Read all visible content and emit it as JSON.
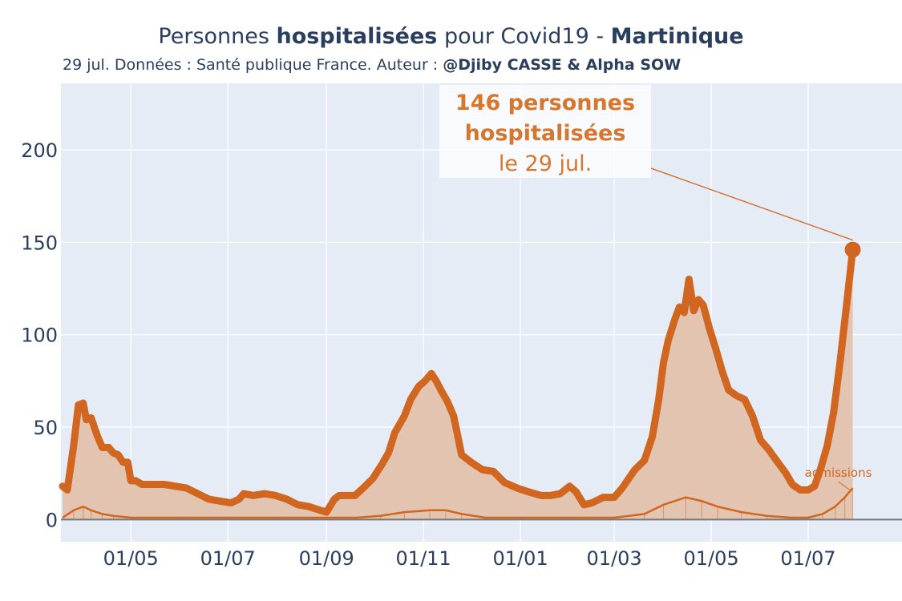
{
  "header": {
    "title_prefix": "Personnes ",
    "title_bold1": "hospitalisées",
    "title_middle": " pour Covid19 - ",
    "title_bold2": "Martinique",
    "subtitle_prefix": "29 jul. Données : Santé publique France. Auteur : ",
    "subtitle_bold": "@Djiby CASSE & Alpha SOW"
  },
  "annotation": {
    "line1": "146 personnes",
    "line2": "hospitalisées",
    "line3": "le 29 jul.",
    "color": "#d6762f"
  },
  "colors": {
    "plot_bg": "#e5ecf6",
    "grid": "#ffffff",
    "main_line": "#d0661f",
    "fill": "#e2c2ad",
    "admissions": "#d0661f",
    "axis_text": "#2a3f5f",
    "zero_line": "#777777"
  },
  "chart_data": {
    "type": "area",
    "xlim": [
      "2020-03-18",
      "2021-08-29"
    ],
    "ylim": [
      -12,
      236
    ],
    "y_ticks": [
      0,
      50,
      100,
      150,
      200
    ],
    "x_ticks": [
      {
        "date": "2020-05-01",
        "label": "01/05"
      },
      {
        "date": "2020-07-01",
        "label": "01/07"
      },
      {
        "date": "2020-09-01",
        "label": "01/09"
      },
      {
        "date": "2020-11-01",
        "label": "01/11"
      },
      {
        "date": "2021-01-01",
        "label": "01/01"
      },
      {
        "date": "2021-03-01",
        "label": "01/03"
      },
      {
        "date": "2021-05-01",
        "label": "01/05"
      },
      {
        "date": "2021-07-01",
        "label": "01/07"
      }
    ],
    "grid": true,
    "series": [
      {
        "name": "",
        "type": "area",
        "points": [
          [
            "2020-03-19",
            18
          ],
          [
            "2020-03-22",
            16
          ],
          [
            "2020-03-26",
            40
          ],
          [
            "2020-03-29",
            62
          ],
          [
            "2020-04-01",
            63
          ],
          [
            "2020-04-03",
            54
          ],
          [
            "2020-04-06",
            55
          ],
          [
            "2020-04-10",
            45
          ],
          [
            "2020-04-13",
            39
          ],
          [
            "2020-04-17",
            39
          ],
          [
            "2020-04-20",
            36
          ],
          [
            "2020-04-23",
            35
          ],
          [
            "2020-04-26",
            31
          ],
          [
            "2020-04-29",
            31
          ],
          [
            "2020-05-01",
            21
          ],
          [
            "2020-05-04",
            21
          ],
          [
            "2020-05-08",
            19
          ],
          [
            "2020-05-15",
            19
          ],
          [
            "2020-05-22",
            19
          ],
          [
            "2020-05-29",
            18
          ],
          [
            "2020-06-05",
            17
          ],
          [
            "2020-06-12",
            14
          ],
          [
            "2020-06-19",
            11
          ],
          [
            "2020-06-26",
            10
          ],
          [
            "2020-07-03",
            9
          ],
          [
            "2020-07-08",
            11
          ],
          [
            "2020-07-11",
            14
          ],
          [
            "2020-07-17",
            13
          ],
          [
            "2020-07-24",
            14
          ],
          [
            "2020-07-31",
            13
          ],
          [
            "2020-08-07",
            11
          ],
          [
            "2020-08-14",
            8
          ],
          [
            "2020-08-21",
            7
          ],
          [
            "2020-08-28",
            5
          ],
          [
            "2020-09-01",
            4
          ],
          [
            "2020-09-06",
            11
          ],
          [
            "2020-09-09",
            13
          ],
          [
            "2020-09-13",
            13
          ],
          [
            "2020-09-19",
            13
          ],
          [
            "2020-09-24",
            17
          ],
          [
            "2020-09-30",
            22
          ],
          [
            "2020-10-06",
            30
          ],
          [
            "2020-10-10",
            36
          ],
          [
            "2020-10-14",
            47
          ],
          [
            "2020-10-20",
            56
          ],
          [
            "2020-10-24",
            65
          ],
          [
            "2020-10-29",
            72
          ],
          [
            "2020-11-02",
            75
          ],
          [
            "2020-11-06",
            79
          ],
          [
            "2020-11-09",
            75
          ],
          [
            "2020-11-12",
            70
          ],
          [
            "2020-11-16",
            64
          ],
          [
            "2020-11-20",
            56
          ],
          [
            "2020-11-25",
            35
          ],
          [
            "2020-12-01",
            31
          ],
          [
            "2020-12-08",
            27
          ],
          [
            "2020-12-15",
            26
          ],
          [
            "2020-12-22",
            20
          ],
          [
            "2020-12-30",
            17
          ],
          [
            "2021-01-06",
            15
          ],
          [
            "2021-01-14",
            13
          ],
          [
            "2021-01-20",
            13
          ],
          [
            "2021-01-26",
            14
          ],
          [
            "2021-02-01",
            18
          ],
          [
            "2021-02-05",
            15
          ],
          [
            "2021-02-10",
            8
          ],
          [
            "2021-02-15",
            9
          ],
          [
            "2021-02-22",
            12
          ],
          [
            "2021-03-01",
            12
          ],
          [
            "2021-03-06",
            17
          ],
          [
            "2021-03-10",
            22
          ],
          [
            "2021-03-14",
            27
          ],
          [
            "2021-03-20",
            32
          ],
          [
            "2021-03-25",
            45
          ],
          [
            "2021-03-29",
            65
          ],
          [
            "2021-04-01",
            85
          ],
          [
            "2021-04-04",
            97
          ],
          [
            "2021-04-08",
            108
          ],
          [
            "2021-04-11",
            115
          ],
          [
            "2021-04-14",
            112
          ],
          [
            "2021-04-17",
            130
          ],
          [
            "2021-04-20",
            113
          ],
          [
            "2021-04-23",
            119
          ],
          [
            "2021-04-26",
            116
          ],
          [
            "2021-04-30",
            103
          ],
          [
            "2021-05-04",
            92
          ],
          [
            "2021-05-08",
            80
          ],
          [
            "2021-05-12",
            70
          ],
          [
            "2021-05-17",
            67
          ],
          [
            "2021-05-22",
            65
          ],
          [
            "2021-05-27",
            56
          ],
          [
            "2021-06-01",
            43
          ],
          [
            "2021-06-06",
            38
          ],
          [
            "2021-06-11",
            32
          ],
          [
            "2021-06-17",
            25
          ],
          [
            "2021-06-21",
            19
          ],
          [
            "2021-06-26",
            16
          ],
          [
            "2021-07-01",
            16
          ],
          [
            "2021-07-05",
            18
          ],
          [
            "2021-07-09",
            28
          ],
          [
            "2021-07-13",
            40
          ],
          [
            "2021-07-17",
            58
          ],
          [
            "2021-07-21",
            85
          ],
          [
            "2021-07-25",
            115
          ],
          [
            "2021-07-29",
            146
          ]
        ]
      },
      {
        "name": "admissions",
        "type": "line",
        "points": [
          [
            "2020-03-19",
            1
          ],
          [
            "2020-03-26",
            5
          ],
          [
            "2020-04-01",
            7
          ],
          [
            "2020-04-06",
            5
          ],
          [
            "2020-04-13",
            3
          ],
          [
            "2020-04-20",
            2
          ],
          [
            "2020-05-01",
            1
          ],
          [
            "2020-06-01",
            1
          ],
          [
            "2020-07-01",
            1
          ],
          [
            "2020-08-01",
            1
          ],
          [
            "2020-09-01",
            1
          ],
          [
            "2020-09-20",
            1
          ],
          [
            "2020-10-05",
            2
          ],
          [
            "2020-10-20",
            4
          ],
          [
            "2020-11-05",
            5
          ],
          [
            "2020-11-15",
            5
          ],
          [
            "2020-11-25",
            3
          ],
          [
            "2020-12-10",
            1
          ],
          [
            "2021-01-01",
            1
          ],
          [
            "2021-02-01",
            1
          ],
          [
            "2021-03-01",
            1
          ],
          [
            "2021-03-20",
            3
          ],
          [
            "2021-04-01",
            8
          ],
          [
            "2021-04-15",
            12
          ],
          [
            "2021-04-25",
            10
          ],
          [
            "2021-05-05",
            7
          ],
          [
            "2021-05-20",
            4
          ],
          [
            "2021-06-05",
            2
          ],
          [
            "2021-06-20",
            1
          ],
          [
            "2021-07-01",
            1
          ],
          [
            "2021-07-10",
            3
          ],
          [
            "2021-07-18",
            7
          ],
          [
            "2021-07-24",
            12
          ],
          [
            "2021-07-29",
            17
          ]
        ]
      }
    ],
    "annotation_points": [
      {
        "date": "2021-07-29",
        "value": 146
      }
    ],
    "labels": {
      "admissions_label": "admissions"
    }
  }
}
